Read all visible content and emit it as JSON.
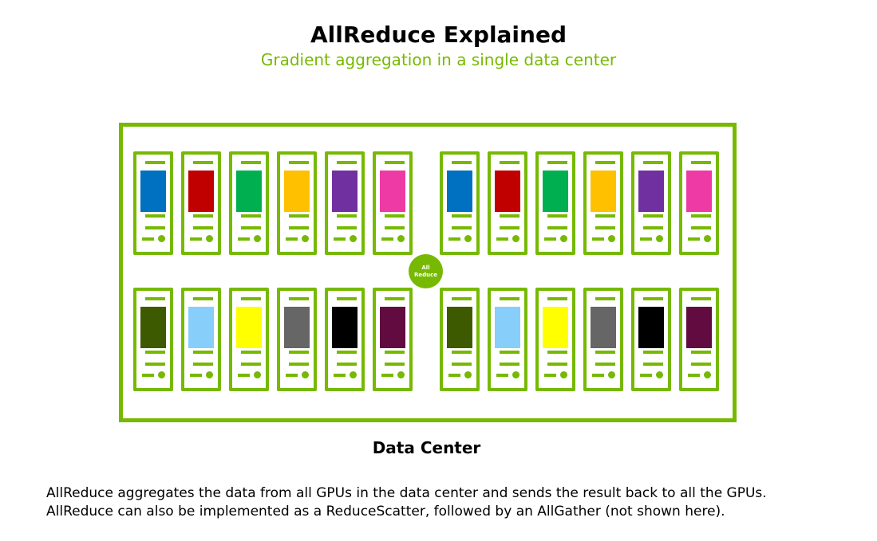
{
  "header": {
    "title": "AllReduce Explained",
    "subtitle": "Gradient aggregation in a single data center"
  },
  "diagram": {
    "hub_label_line1": "All",
    "hub_label_line2": "Reduce",
    "data_center_label": "Data Center",
    "colors": {
      "accent": "#76b900",
      "top_row_gpu_colors": [
        "#0070c0",
        "#c00000",
        "#00b050",
        "#ffc000",
        "#7030a0",
        "#ee3aa4"
      ],
      "bottom_row_gpu_colors": [
        "#3d5a00",
        "#87cefa",
        "#ffff00",
        "#666666",
        "#000000",
        "#620b40"
      ]
    },
    "server_groups": [
      {
        "row": "top",
        "side": "left",
        "count": 6
      },
      {
        "row": "top",
        "side": "right",
        "count": 6
      },
      {
        "row": "bottom",
        "side": "left",
        "count": 6
      },
      {
        "row": "bottom",
        "side": "right",
        "count": 6
      }
    ]
  },
  "description": {
    "line1": "AllReduce aggregates the data from all GPUs in the data center and sends the result back to all the GPUs.",
    "line2": "AllReduce can also be implemented as a ReduceScatter, followed by an AllGather (not shown here)."
  }
}
